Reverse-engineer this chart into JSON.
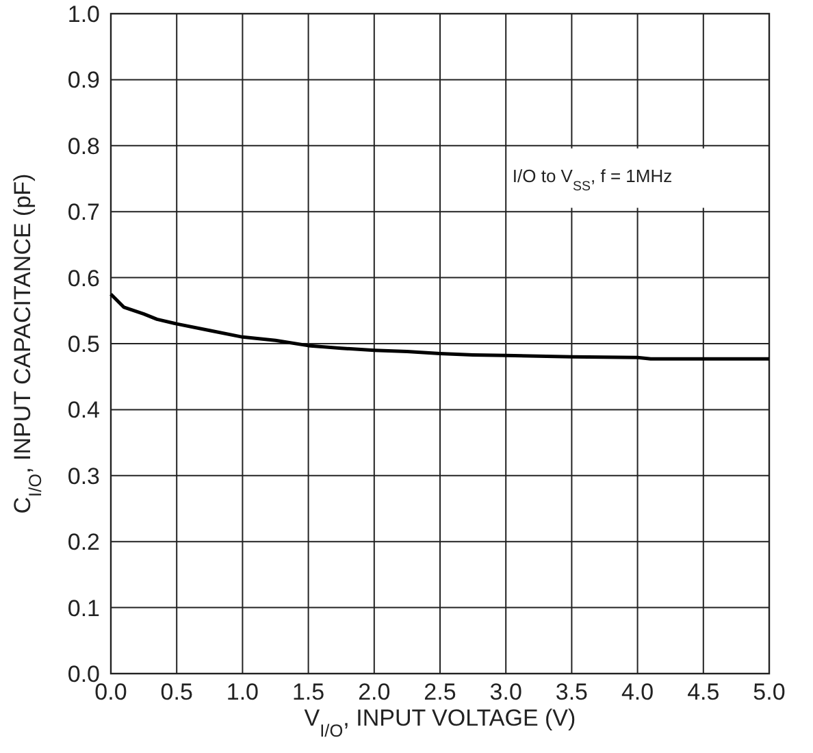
{
  "chart_data": {
    "type": "line",
    "xlabel": "V$_{I/O}$, INPUT VOLTAGE (V)",
    "ylabel": "C$_{I/O}$, INPUT CAPACITANCE (pF)",
    "annotations": [
      "I/O to V$_{SS}$, f = 1MHz"
    ],
    "x": [
      0,
      0.1,
      0.25,
      0.35,
      0.5,
      0.75,
      1.0,
      1.25,
      1.5,
      1.75,
      2.0,
      2.25,
      2.5,
      2.75,
      3.0,
      3.5,
      4.0,
      4.1,
      5.0
    ],
    "series": [
      {
        "color": "#000000",
        "values": [
          0.575,
          0.555,
          0.545,
          0.537,
          0.53,
          0.52,
          0.51,
          0.505,
          0.497,
          0.493,
          0.49,
          0.488,
          0.485,
          0.483,
          0.482,
          0.48,
          0.479,
          0.477,
          0.477
        ]
      }
    ],
    "xlim": [
      0,
      5
    ],
    "xticks": [
      {
        "value": 0,
        "label": "0.0"
      },
      0.5,
      {
        "value": 1,
        "label": "1.0"
      },
      1.5,
      {
        "value": 2,
        "label": "2.0"
      },
      2.5,
      {
        "value": 3,
        "label": "3.0"
      },
      3.5,
      {
        "value": 4,
        "label": "4.0"
      },
      4.5,
      {
        "value": 5,
        "label": "5.0"
      }
    ],
    "ylim": [
      0,
      1
    ],
    "yticks": [
      {
        "value": 0,
        "label": "0.0"
      },
      0.1,
      0.2,
      0.3,
      0.4,
      0.5,
      0.6,
      0.7,
      0.8,
      0.9,
      {
        "value": 1,
        "label": "1.0"
      }
    ],
    "grid": true,
    "marker": "none",
    "line_style": "solid"
  }
}
